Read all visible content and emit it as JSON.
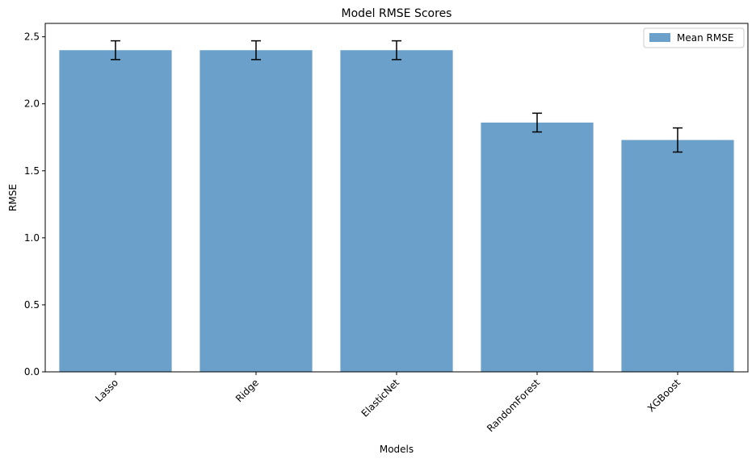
{
  "chart_data": {
    "type": "bar",
    "title": "Model RMSE Scores",
    "xlabel": "Models",
    "ylabel": "RMSE",
    "categories": [
      "Lasso",
      "Ridge",
      "ElasticNet",
      "RandomForest",
      "XGBoost"
    ],
    "series": [
      {
        "name": "Mean RMSE",
        "values": [
          2.4,
          2.4,
          2.4,
          1.86,
          1.73
        ],
        "errors": [
          0.07,
          0.07,
          0.07,
          0.07,
          0.09
        ],
        "color": "#6aa0c9"
      }
    ],
    "ylim": [
      0,
      2.6
    ],
    "yticks": [
      "0.0",
      "0.5",
      "1.0",
      "1.5",
      "2.0",
      "2.5"
    ],
    "grid": false,
    "legend_position": "top-right",
    "xtick_rotation": 45
  }
}
